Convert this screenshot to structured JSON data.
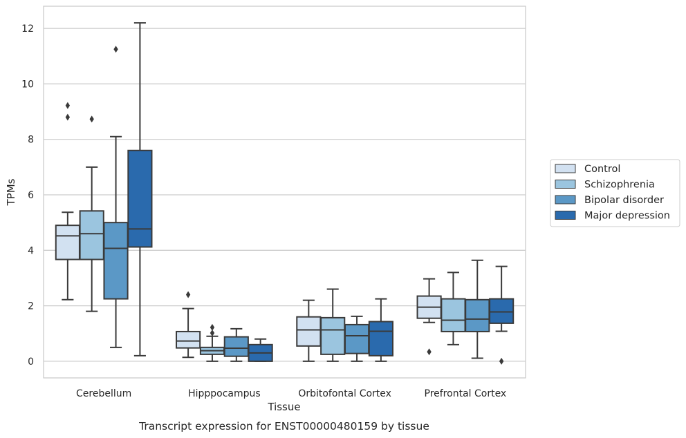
{
  "chart_data": {
    "type": "box",
    "title": "",
    "caption": "Transcript expression for ENST00000480159 by tissue",
    "xlabel": "Tissue",
    "ylabel": "TPMs",
    "ylim": [
      -0.6,
      12.8
    ],
    "yticks": [
      0,
      2,
      4,
      6,
      8,
      10,
      12
    ],
    "grid": "horizontal",
    "legend_position": "right",
    "categories": [
      "Cerebellum",
      "Hipppocampus",
      "Orbitofontal Cortex",
      "Prefrontal Cortex"
    ],
    "series": [
      {
        "name": "Control",
        "color": "#d2e1f1",
        "boxes": [
          {
            "whislo": 2.22,
            "q1": 3.67,
            "med": 4.52,
            "q3": 4.9,
            "whishi": 5.37,
            "fliers": [
              8.8,
              9.22
            ]
          },
          {
            "whislo": 0.14,
            "q1": 0.48,
            "med": 0.73,
            "q3": 1.07,
            "whishi": 1.9,
            "fliers": [
              2.4
            ]
          },
          {
            "whislo": 0.0,
            "q1": 0.55,
            "med": 1.13,
            "q3": 1.6,
            "whishi": 2.2,
            "fliers": []
          },
          {
            "whislo": 1.4,
            "q1": 1.55,
            "med": 1.95,
            "q3": 2.35,
            "whishi": 2.97,
            "fliers": [
              0.34
            ]
          }
        ]
      },
      {
        "name": "Schizophrenia",
        "color": "#9bc5df",
        "boxes": [
          {
            "whislo": 1.8,
            "q1": 3.67,
            "med": 4.6,
            "q3": 5.42,
            "whishi": 7.0,
            "fliers": [
              8.73
            ]
          },
          {
            "whislo": 0.0,
            "q1": 0.25,
            "med": 0.38,
            "q3": 0.5,
            "whishi": 0.9,
            "fliers": [
              1.02,
              1.22
            ]
          },
          {
            "whislo": 0.0,
            "q1": 0.25,
            "med": 1.13,
            "q3": 1.57,
            "whishi": 2.6,
            "fliers": []
          },
          {
            "whislo": 0.6,
            "q1": 1.07,
            "med": 1.48,
            "q3": 2.25,
            "whishi": 3.2,
            "fliers": []
          }
        ]
      },
      {
        "name": "Bipolar disorder",
        "color": "#5b98c6",
        "boxes": [
          {
            "whislo": 0.5,
            "q1": 2.25,
            "med": 4.07,
            "q3": 5.0,
            "whishi": 8.1,
            "fliers": [
              11.25
            ]
          },
          {
            "whislo": 0.0,
            "q1": 0.18,
            "med": 0.47,
            "q3": 0.88,
            "whishi": 1.17,
            "fliers": []
          },
          {
            "whislo": 0.0,
            "q1": 0.28,
            "med": 0.92,
            "q3": 1.32,
            "whishi": 1.62,
            "fliers": []
          },
          {
            "whislo": 0.11,
            "q1": 1.07,
            "med": 1.52,
            "q3": 2.22,
            "whishi": 3.64,
            "fliers": []
          }
        ]
      },
      {
        "name": "Major depression",
        "color": "#2a6aad",
        "boxes": [
          {
            "whislo": 0.2,
            "q1": 4.12,
            "med": 4.77,
            "q3": 7.6,
            "whishi": 12.2,
            "fliers": []
          },
          {
            "whislo": 0.0,
            "q1": 0.0,
            "med": 0.3,
            "q3": 0.6,
            "whishi": 0.8,
            "fliers": []
          },
          {
            "whislo": 0.0,
            "q1": 0.2,
            "med": 1.08,
            "q3": 1.43,
            "whishi": 2.25,
            "fliers": []
          },
          {
            "whislo": 1.08,
            "q1": 1.37,
            "med": 1.78,
            "q3": 2.25,
            "whishi": 3.42,
            "fliers": [
              0.0
            ]
          }
        ]
      }
    ]
  }
}
